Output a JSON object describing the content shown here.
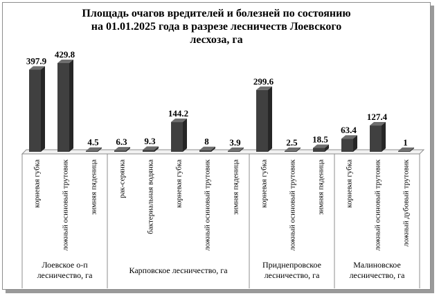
{
  "chart_data": {
    "type": "bar",
    "title": "Площадь очагов вредителей и болезней по состоянию\nна 01.01.2025 года в разрезе лесничеств Лоевского\nлесхоза, га",
    "xlabel": "",
    "ylabel": "",
    "ylim": [
      0,
      450
    ],
    "grid": false,
    "legend": "none",
    "bar_color": "#404040",
    "groups": [
      {
        "name": "Лоевское о-п\nлесничество, га",
        "categories": [
          "корневая губка",
          "ложный осиновый трутовик",
          "зимняя пяденица"
        ],
        "values": [
          397.9,
          429.8,
          4.5
        ],
        "labels": [
          "397.9",
          "429.8",
          "4.5"
        ]
      },
      {
        "name": "Карповское лесничество, га",
        "categories": [
          "рак-серянка",
          "бактериальная водянка",
          "корневая губка",
          "ложный осиновый трутовик",
          "зимняя пяденица"
        ],
        "values": [
          6.3,
          9.3,
          144.2,
          8,
          3.9
        ],
        "labels": [
          "6.3",
          "9.3",
          "144.2",
          "8",
          "3.9"
        ]
      },
      {
        "name": "Приднепровское\nлесничество, га",
        "categories": [
          "корневая губка",
          "ложный осиновый трутовик",
          "зимняя пяденица"
        ],
        "values": [
          299.6,
          2.5,
          18.5
        ],
        "labels": [
          "299.6",
          "2.5",
          "18.5"
        ]
      },
      {
        "name": "Малиновское\nлесничество, га",
        "categories": [
          "корневая губка",
          "ложный осиновый трутовик",
          "ложный дубовый трутовик"
        ],
        "values": [
          63.4,
          127.4,
          1
        ],
        "labels": [
          "63.4",
          "127.4",
          "1"
        ]
      }
    ]
  }
}
